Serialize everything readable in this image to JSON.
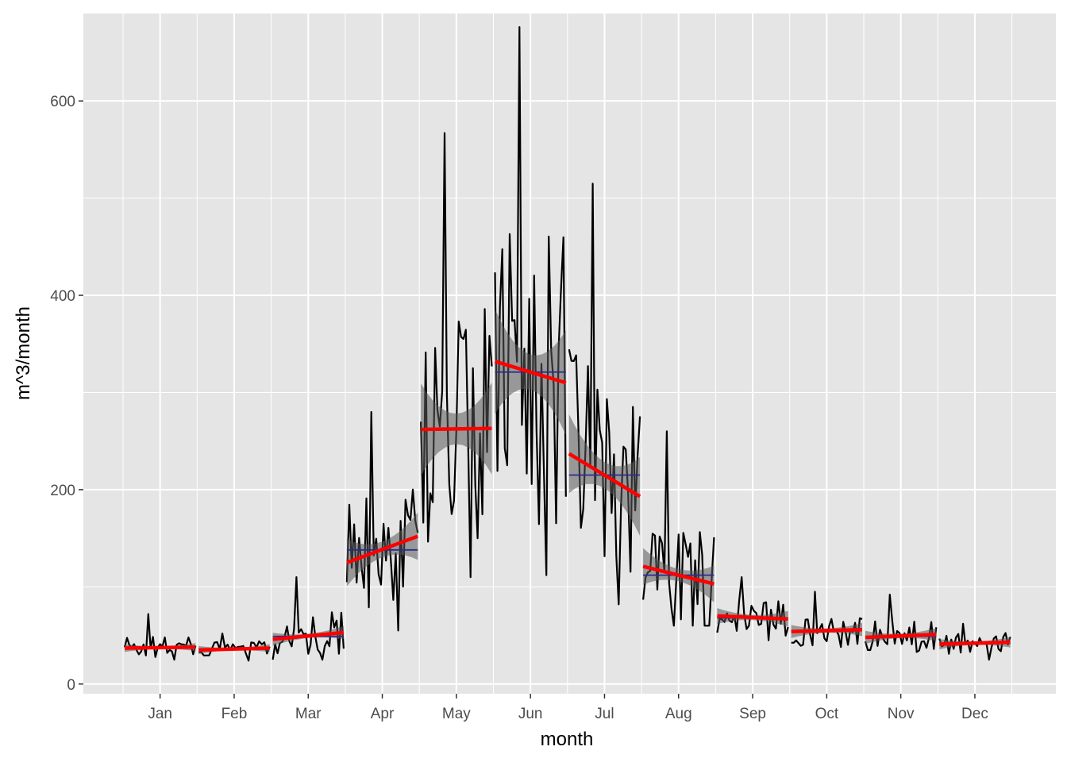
{
  "chart_data": {
    "type": "line",
    "title": "",
    "xlabel": "month",
    "ylabel": "m^3/month",
    "x_categories": [
      "Jan",
      "Feb",
      "Mar",
      "Apr",
      "May",
      "Jun",
      "Jul",
      "Aug",
      "Sep",
      "Oct",
      "Nov",
      "Dec"
    ],
    "y_ticks": [
      0,
      200,
      400,
      600
    ],
    "ylim": [
      -10,
      690
    ],
    "grid": true,
    "legend": "none",
    "colors": {
      "panel": "#e5e5e5",
      "grid": "#ffffff",
      "series": "#000000",
      "trend": "#ff0000",
      "mean": "#2b2b8c",
      "band": "#595959"
    },
    "series": [
      {
        "values_by_month": [
          {
            "month": "Jan",
            "min": 25,
            "max": 72,
            "typical": 37
          },
          {
            "month": "Feb",
            "min": 24,
            "max": 52,
            "typical": 36
          },
          {
            "month": "Mar",
            "min": 25,
            "max": 110,
            "typical": 48
          },
          {
            "month": "Apr",
            "min": 55,
            "max": 280,
            "typical": 138
          },
          {
            "month": "May",
            "min": 110,
            "max": 567,
            "typical": 262
          },
          {
            "month": "Jun",
            "min": 112,
            "max": 676,
            "typical": 320
          },
          {
            "month": "Jul",
            "min": 82,
            "max": 515,
            "typical": 215
          },
          {
            "month": "Aug",
            "min": 60,
            "max": 260,
            "typical": 112
          },
          {
            "month": "Sep",
            "min": 45,
            "max": 110,
            "typical": 68
          },
          {
            "month": "Oct",
            "min": 38,
            "max": 95,
            "typical": 55
          },
          {
            "month": "Nov",
            "min": 33,
            "max": 92,
            "typical": 49
          },
          {
            "month": "Dec",
            "min": 25,
            "max": 62,
            "typical": 41
          }
        ]
      }
    ],
    "trend_lines": [
      {
        "month": "Jan",
        "start": 37,
        "end": 38,
        "mean": 37,
        "band": 3
      },
      {
        "month": "Feb",
        "start": 35,
        "end": 37,
        "mean": 36,
        "band": 3
      },
      {
        "month": "Mar",
        "start": 46,
        "end": 53,
        "mean": 49,
        "band": 5
      },
      {
        "month": "Apr",
        "start": 125,
        "end": 152,
        "mean": 138,
        "band": 18
      },
      {
        "month": "May",
        "start": 262,
        "end": 263,
        "mean": 262,
        "band": 35
      },
      {
        "month": "Jun",
        "start": 332,
        "end": 310,
        "mean": 321,
        "band": 40
      },
      {
        "month": "Jul",
        "start": 237,
        "end": 193,
        "mean": 215,
        "band": 30
      },
      {
        "month": "Aug",
        "start": 121,
        "end": 103,
        "mean": 112,
        "band": 14
      },
      {
        "month": "Sep",
        "start": 70,
        "end": 67,
        "mean": 68,
        "band": 6
      },
      {
        "month": "Oct",
        "start": 54,
        "end": 56,
        "mean": 55,
        "band": 5
      },
      {
        "month": "Nov",
        "start": 48,
        "end": 51,
        "mean": 49,
        "band": 5
      },
      {
        "month": "Dec",
        "start": 41,
        "end": 43,
        "mean": 42,
        "band": 4
      }
    ]
  }
}
